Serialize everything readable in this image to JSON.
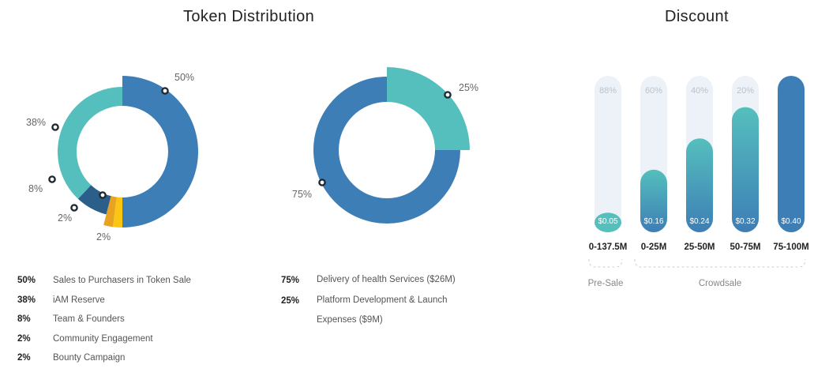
{
  "titles": {
    "token": "Token Distribution",
    "discount": "Discount"
  },
  "colors": {
    "blue": "#3d7eb6",
    "teal": "#55bfbd",
    "dark_blue": "#2b5f8a",
    "orange": "#e9a321",
    "yellow": "#fbc613",
    "track": "#edf2f8"
  },
  "chart_data": [
    {
      "type": "pie",
      "title": "",
      "slices": [
        {
          "name": "Sales to Purchasers in Token Sale",
          "label": "50%",
          "value": 50,
          "color": "#3d7eb6"
        },
        {
          "name": "Bounty Campaign",
          "label": "2%",
          "value": 2,
          "color": "#fbc613"
        },
        {
          "name": "Community Engagement",
          "label": "2%",
          "value": 2,
          "color": "#e9a321"
        },
        {
          "name": "Team & Founders",
          "label": "8%",
          "value": 8,
          "color": "#2b5f8a"
        },
        {
          "name": "iAM Reserve",
          "label": "38%",
          "value": 38,
          "color": "#55bfbd"
        }
      ]
    },
    {
      "type": "pie",
      "title": "",
      "slices": [
        {
          "name": "Platform Development & Launch Expenses ($9M)",
          "label": "25%",
          "value": 25,
          "color": "#55bfbd"
        },
        {
          "name": "Delivery of health Services ($26M)",
          "label": "75%",
          "value": 75,
          "color": "#3d7eb6"
        }
      ]
    },
    {
      "type": "bar",
      "title": "",
      "categories": [
        "0-137.5M",
        "0-25M",
        "25-50M",
        "50-75M",
        "75-100M"
      ],
      "discounts": [
        "88%",
        "60%",
        "40%",
        "20%",
        ""
      ],
      "prices": [
        "$0.05",
        "$0.16",
        "$0.24",
        "$0.32",
        "$0.40"
      ],
      "values": [
        0.05,
        0.16,
        0.24,
        0.32,
        0.4
      ],
      "groups": [
        {
          "label": "Pre-Sale",
          "from": 0,
          "to": 0
        },
        {
          "label": "Crowdsale",
          "from": 1,
          "to": 4
        }
      ]
    }
  ],
  "legend_left": [
    {
      "pct": "50%",
      "desc": "Sales to Purchasers in Token Sale"
    },
    {
      "pct": "38%",
      "desc": "iAM Reserve"
    },
    {
      "pct": "8%",
      "desc": "Team & Founders"
    },
    {
      "pct": "2%",
      "desc": "Community Engagement"
    },
    {
      "pct": "2%",
      "desc": "Bounty Campaign"
    }
  ],
  "legend_right": [
    {
      "pct": "75%",
      "desc": "Delivery of health Services ($26M)"
    },
    {
      "pct": "25%",
      "desc": "Platform Development & Launch Expenses ($9M)"
    }
  ]
}
